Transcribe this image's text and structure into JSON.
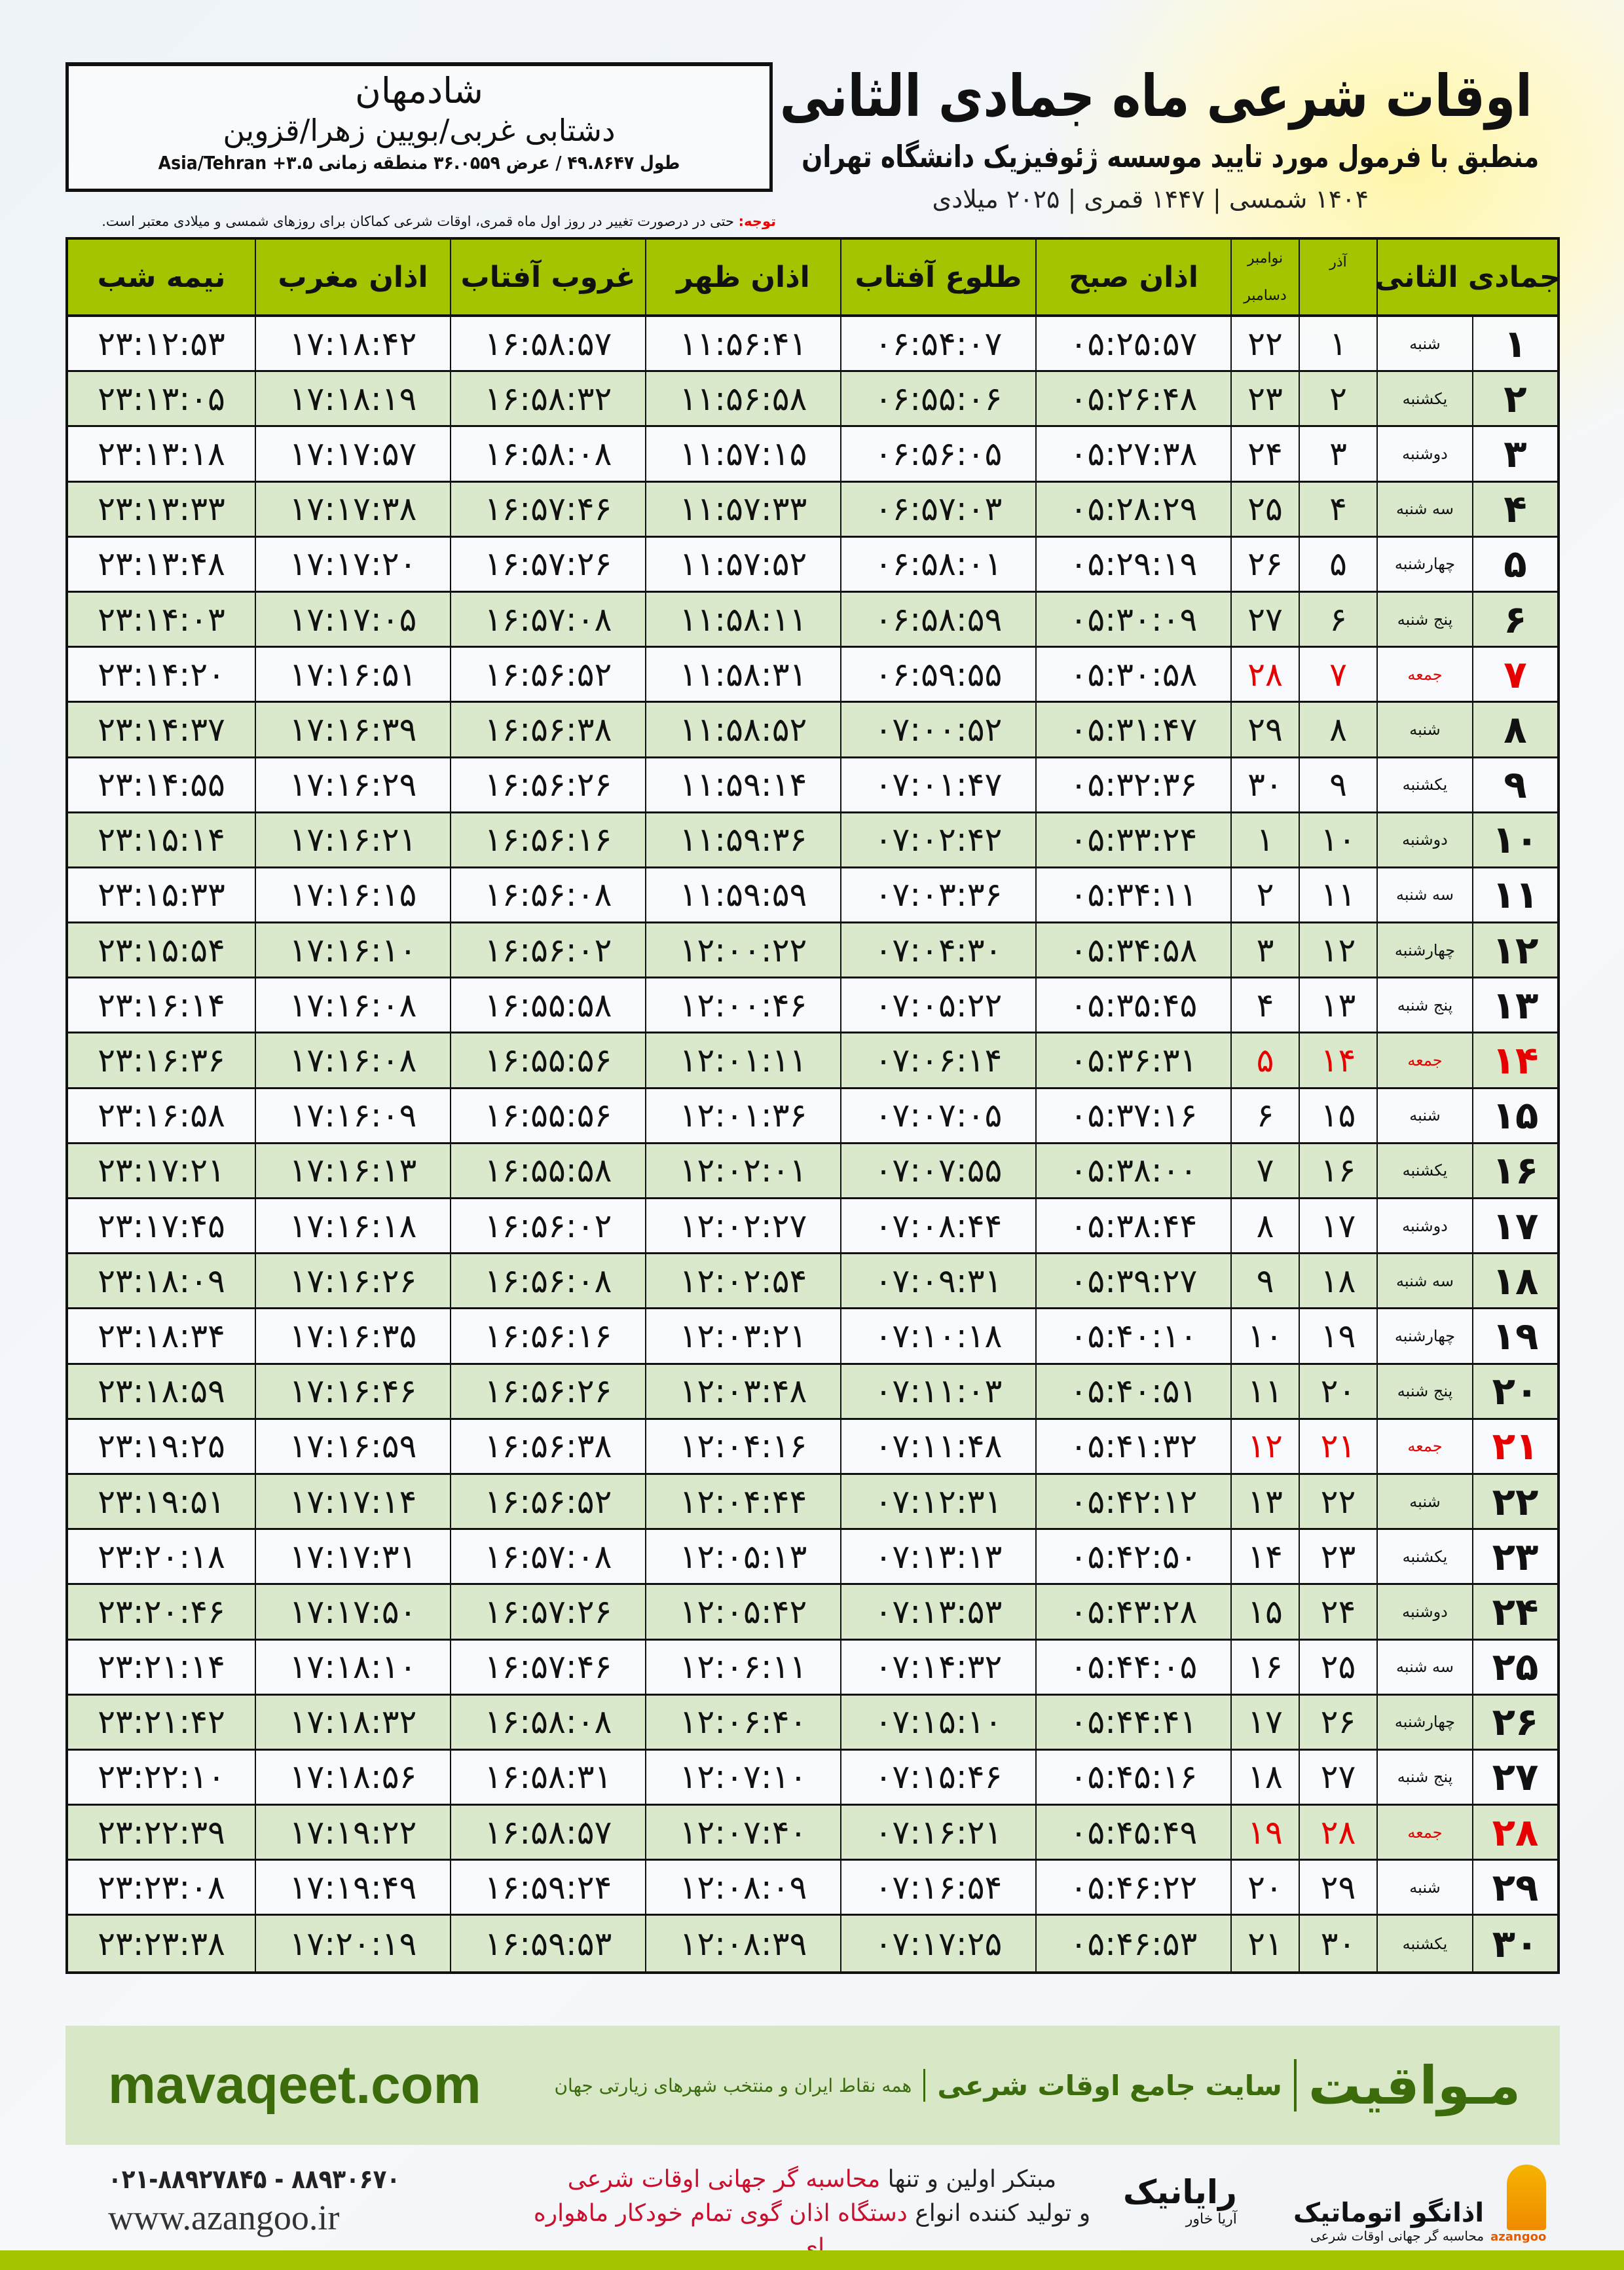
{
  "header": {
    "title": "اوقات شرعی ماه جمادی الثانی",
    "subtitle": "منطبق با فرمول مورد تایید موسسه ژئوفیزیک دانشگاه تهران",
    "dates": "۱۴۰۴ شمسی | ۱۴۴۷ قمری | ۲۰۲۵ میلادی"
  },
  "location": {
    "city": "شادمهان",
    "region": "دشتابی غربی/بویین زهرا/قزوین",
    "coords": "طول ۴۹.۸۶۴۷ / عرض ۳۶.۰۵۵۹ منطقه زمانی ۳.۵+ Asia/Tehran"
  },
  "note": {
    "label": "توجه:",
    "text": " حتی در درصورت تغییر در روز اول ماه قمری، اوقات شرعی کماکان برای روزهای شمسی و میلادی معتبر است."
  },
  "table": {
    "headers": {
      "hijri": "جمادی الثانی",
      "azar": "آذر",
      "greg_top": "نوامبر",
      "greg_bottom": "دسامبر",
      "fajr": "اذان صبح",
      "sunrise": "طلوع آفتاب",
      "dhuhr": "اذان ظهر",
      "sunset": "غروب آفتاب",
      "maghrib": "اذان مغرب",
      "midnight": "نیمه شب"
    },
    "friday_color": "#e60000",
    "rows": [
      [
        "۱",
        "شنبه",
        "۱",
        "۲۲",
        "۰۵:۲۵:۵۷",
        "۰۶:۵۴:۰۷",
        "۱۱:۵۶:۴۱",
        "۱۶:۵۸:۵۷",
        "۱۷:۱۸:۴۲",
        "۲۳:۱۲:۵۳"
      ],
      [
        "۲",
        "یکشنبه",
        "۲",
        "۲۳",
        "۰۵:۲۶:۴۸",
        "۰۶:۵۵:۰۶",
        "۱۱:۵۶:۵۸",
        "۱۶:۵۸:۳۲",
        "۱۷:۱۸:۱۹",
        "۲۳:۱۳:۰۵"
      ],
      [
        "۳",
        "دوشنبه",
        "۳",
        "۲۴",
        "۰۵:۲۷:۳۸",
        "۰۶:۵۶:۰۵",
        "۱۱:۵۷:۱۵",
        "۱۶:۵۸:۰۸",
        "۱۷:۱۷:۵۷",
        "۲۳:۱۳:۱۸"
      ],
      [
        "۴",
        "سه شنبه",
        "۴",
        "۲۵",
        "۰۵:۲۸:۲۹",
        "۰۶:۵۷:۰۳",
        "۱۱:۵۷:۳۳",
        "۱۶:۵۷:۴۶",
        "۱۷:۱۷:۳۸",
        "۲۳:۱۳:۳۳"
      ],
      [
        "۵",
        "چهارشنبه",
        "۵",
        "۲۶",
        "۰۵:۲۹:۱۹",
        "۰۶:۵۸:۰۱",
        "۱۱:۵۷:۵۲",
        "۱۶:۵۷:۲۶",
        "۱۷:۱۷:۲۰",
        "۲۳:۱۳:۴۸"
      ],
      [
        "۶",
        "پنج شنبه",
        "۶",
        "۲۷",
        "۰۵:۳۰:۰۹",
        "۰۶:۵۸:۵۹",
        "۱۱:۵۸:۱۱",
        "۱۶:۵۷:۰۸",
        "۱۷:۱۷:۰۵",
        "۲۳:۱۴:۰۳"
      ],
      [
        "۷",
        "جمعه",
        "۷",
        "۲۸",
        "۰۵:۳۰:۵۸",
        "۰۶:۵۹:۵۵",
        "۱۱:۵۸:۳۱",
        "۱۶:۵۶:۵۲",
        "۱۷:۱۶:۵۱",
        "۲۳:۱۴:۲۰"
      ],
      [
        "۸",
        "شنبه",
        "۸",
        "۲۹",
        "۰۵:۳۱:۴۷",
        "۰۷:۰۰:۵۲",
        "۱۱:۵۸:۵۲",
        "۱۶:۵۶:۳۸",
        "۱۷:۱۶:۳۹",
        "۲۳:۱۴:۳۷"
      ],
      [
        "۹",
        "یکشنبه",
        "۹",
        "۳۰",
        "۰۵:۳۲:۳۶",
        "۰۷:۰۱:۴۷",
        "۱۱:۵۹:۱۴",
        "۱۶:۵۶:۲۶",
        "۱۷:۱۶:۲۹",
        "۲۳:۱۴:۵۵"
      ],
      [
        "۱۰",
        "دوشنبه",
        "۱۰",
        "۱",
        "۰۵:۳۳:۲۴",
        "۰۷:۰۲:۴۲",
        "۱۱:۵۹:۳۶",
        "۱۶:۵۶:۱۶",
        "۱۷:۱۶:۲۱",
        "۲۳:۱۵:۱۴"
      ],
      [
        "۱۱",
        "سه شنبه",
        "۱۱",
        "۲",
        "۰۵:۳۴:۱۱",
        "۰۷:۰۳:۳۶",
        "۱۱:۵۹:۵۹",
        "۱۶:۵۶:۰۸",
        "۱۷:۱۶:۱۵",
        "۲۳:۱۵:۳۳"
      ],
      [
        "۱۲",
        "چهارشنبه",
        "۱۲",
        "۳",
        "۰۵:۳۴:۵۸",
        "۰۷:۰۴:۳۰",
        "۱۲:۰۰:۲۲",
        "۱۶:۵۶:۰۲",
        "۱۷:۱۶:۱۰",
        "۲۳:۱۵:۵۴"
      ],
      [
        "۱۳",
        "پنج شنبه",
        "۱۳",
        "۴",
        "۰۵:۳۵:۴۵",
        "۰۷:۰۵:۲۲",
        "۱۲:۰۰:۴۶",
        "۱۶:۵۵:۵۸",
        "۱۷:۱۶:۰۸",
        "۲۳:۱۶:۱۴"
      ],
      [
        "۱۴",
        "جمعه",
        "۱۴",
        "۵",
        "۰۵:۳۶:۳۱",
        "۰۷:۰۶:۱۴",
        "۱۲:۰۱:۱۱",
        "۱۶:۵۵:۵۶",
        "۱۷:۱۶:۰۸",
        "۲۳:۱۶:۳۶"
      ],
      [
        "۱۵",
        "شنبه",
        "۱۵",
        "۶",
        "۰۵:۳۷:۱۶",
        "۰۷:۰۷:۰۵",
        "۱۲:۰۱:۳۶",
        "۱۶:۵۵:۵۶",
        "۱۷:۱۶:۰۹",
        "۲۳:۱۶:۵۸"
      ],
      [
        "۱۶",
        "یکشنبه",
        "۱۶",
        "۷",
        "۰۵:۳۸:۰۰",
        "۰۷:۰۷:۵۵",
        "۱۲:۰۲:۰۱",
        "۱۶:۵۵:۵۸",
        "۱۷:۱۶:۱۳",
        "۲۳:۱۷:۲۱"
      ],
      [
        "۱۷",
        "دوشنبه",
        "۱۷",
        "۸",
        "۰۵:۳۸:۴۴",
        "۰۷:۰۸:۴۴",
        "۱۲:۰۲:۲۷",
        "۱۶:۵۶:۰۲",
        "۱۷:۱۶:۱۸",
        "۲۳:۱۷:۴۵"
      ],
      [
        "۱۸",
        "سه شنبه",
        "۱۸",
        "۹",
        "۰۵:۳۹:۲۷",
        "۰۷:۰۹:۳۱",
        "۱۲:۰۲:۵۴",
        "۱۶:۵۶:۰۸",
        "۱۷:۱۶:۲۶",
        "۲۳:۱۸:۰۹"
      ],
      [
        "۱۹",
        "چهارشنبه",
        "۱۹",
        "۱۰",
        "۰۵:۴۰:۱۰",
        "۰۷:۱۰:۱۸",
        "۱۲:۰۳:۲۱",
        "۱۶:۵۶:۱۶",
        "۱۷:۱۶:۳۵",
        "۲۳:۱۸:۳۴"
      ],
      [
        "۲۰",
        "پنج شنبه",
        "۲۰",
        "۱۱",
        "۰۵:۴۰:۵۱",
        "۰۷:۱۱:۰۳",
        "۱۲:۰۳:۴۸",
        "۱۶:۵۶:۲۶",
        "۱۷:۱۶:۴۶",
        "۲۳:۱۸:۵۹"
      ],
      [
        "۲۱",
        "جمعه",
        "۲۱",
        "۱۲",
        "۰۵:۴۱:۳۲",
        "۰۷:۱۱:۴۸",
        "۱۲:۰۴:۱۶",
        "۱۶:۵۶:۳۸",
        "۱۷:۱۶:۵۹",
        "۲۳:۱۹:۲۵"
      ],
      [
        "۲۲",
        "شنبه",
        "۲۲",
        "۱۳",
        "۰۵:۴۲:۱۲",
        "۰۷:۱۲:۳۱",
        "۱۲:۰۴:۴۴",
        "۱۶:۵۶:۵۲",
        "۱۷:۱۷:۱۴",
        "۲۳:۱۹:۵۱"
      ],
      [
        "۲۳",
        "یکشنبه",
        "۲۳",
        "۱۴",
        "۰۵:۴۲:۵۰",
        "۰۷:۱۳:۱۳",
        "۱۲:۰۵:۱۳",
        "۱۶:۵۷:۰۸",
        "۱۷:۱۷:۳۱",
        "۲۳:۲۰:۱۸"
      ],
      [
        "۲۴",
        "دوشنبه",
        "۲۴",
        "۱۵",
        "۰۵:۴۳:۲۸",
        "۰۷:۱۳:۵۳",
        "۱۲:۰۵:۴۲",
        "۱۶:۵۷:۲۶",
        "۱۷:۱۷:۵۰",
        "۲۳:۲۰:۴۶"
      ],
      [
        "۲۵",
        "سه شنبه",
        "۲۵",
        "۱۶",
        "۰۵:۴۴:۰۵",
        "۰۷:۱۴:۳۲",
        "۱۲:۰۶:۱۱",
        "۱۶:۵۷:۴۶",
        "۱۷:۱۸:۱۰",
        "۲۳:۲۱:۱۴"
      ],
      [
        "۲۶",
        "چهارشنبه",
        "۲۶",
        "۱۷",
        "۰۵:۴۴:۴۱",
        "۰۷:۱۵:۱۰",
        "۱۲:۰۶:۴۰",
        "۱۶:۵۸:۰۸",
        "۱۷:۱۸:۳۲",
        "۲۳:۲۱:۴۲"
      ],
      [
        "۲۷",
        "پنج شنبه",
        "۲۷",
        "۱۸",
        "۰۵:۴۵:۱۶",
        "۰۷:۱۵:۴۶",
        "۱۲:۰۷:۱۰",
        "۱۶:۵۸:۳۱",
        "۱۷:۱۸:۵۶",
        "۲۳:۲۲:۱۰"
      ],
      [
        "۲۸",
        "جمعه",
        "۲۸",
        "۱۹",
        "۰۵:۴۵:۴۹",
        "۰۷:۱۶:۲۱",
        "۱۲:۰۷:۴۰",
        "۱۶:۵۸:۵۷",
        "۱۷:۱۹:۲۲",
        "۲۳:۲۲:۳۹"
      ],
      [
        "۲۹",
        "شنبه",
        "۲۹",
        "۲۰",
        "۰۵:۴۶:۲۲",
        "۰۷:۱۶:۵۴",
        "۱۲:۰۸:۰۹",
        "۱۶:۵۹:۲۴",
        "۱۷:۱۹:۴۹",
        "۲۳:۲۳:۰۸"
      ],
      [
        "۳۰",
        "یکشنبه",
        "۳۰",
        "۲۱",
        "۰۵:۴۶:۵۳",
        "۰۷:۱۷:۲۵",
        "۱۲:۰۸:۳۹",
        "۱۶:۵۹:۵۳",
        "۱۷:۲۰:۱۹",
        "۲۳:۲۳:۳۸"
      ]
    ]
  },
  "banner": {
    "brand": "مـواقیت",
    "tagline": "سایت جامع اوقات شرعی",
    "tagsub": "همه نقاط ایران و منتخب شهرهای زیارتی جهان",
    "site": "mavaqeet.com"
  },
  "footer": {
    "promo1a": "مبتکر اولین و تنها ",
    "promo1b": "محاسبه گر جهانی اوقات شرعی",
    "promo2a": "و تولید کننده انواع ",
    "promo2b": "دستگاه اذان گوی تمام خودکار ماهواره ای",
    "phones": "۰۲۱-۸۸۹۲۷۸۴۵ - ۸۸۹۳۰۶۷۰",
    "web": "www.azangoo.ir",
    "rayanik": "رایانیک",
    "rayanik_sub": "آریا خاور",
    "azangoo": "اذانگو اتوماتیک",
    "azangoo_sub": "محاسبه گر جهانی اوقات شرعی",
    "azangoo_en": "azangoo"
  }
}
